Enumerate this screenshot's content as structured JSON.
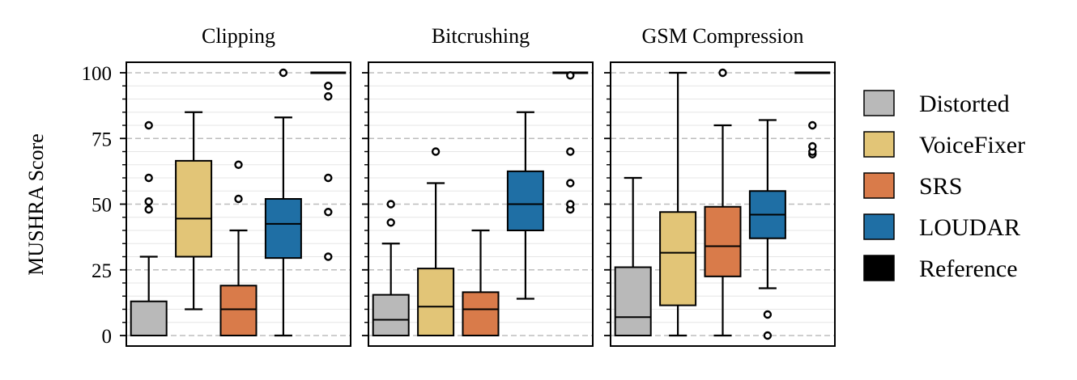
{
  "chart_data": {
    "type": "box",
    "ylabel": "MUSHRA Score",
    "ylim": [
      -4,
      104
    ],
    "yticks": [
      0,
      25,
      50,
      75,
      100
    ],
    "grid": "horizontal (major dashed, minor solid)",
    "legend_placement": "right",
    "legend": [
      {
        "name": "Distorted",
        "color": "#b9b9b9"
      },
      {
        "name": "VoiceFixer",
        "color": "#e2c577"
      },
      {
        "name": "SRS",
        "color": "#d97b4a"
      },
      {
        "name": "LOUDAR",
        "color": "#1f6fa5"
      },
      {
        "name": "Reference",
        "color": "#000000"
      }
    ],
    "panels": [
      {
        "title": "Clipping",
        "boxes": [
          {
            "series": "Distorted",
            "q1": 0,
            "median": 0,
            "q3": 13,
            "whisker_low": 0,
            "whisker_high": 30,
            "outliers": [
              48,
              51,
              60,
              80
            ]
          },
          {
            "series": "VoiceFixer",
            "q1": 30,
            "median": 44.5,
            "q3": 66.5,
            "whisker_low": 10,
            "whisker_high": 85,
            "outliers": []
          },
          {
            "series": "SRS",
            "q1": 0,
            "median": 10,
            "q3": 19,
            "whisker_low": 0,
            "whisker_high": 40,
            "outliers": [
              52,
              65
            ]
          },
          {
            "series": "LOUDAR",
            "q1": 29.5,
            "median": 42.5,
            "q3": 52,
            "whisker_low": 0,
            "whisker_high": 83,
            "outliers": [
              100
            ]
          },
          {
            "series": "Reference",
            "q1": 100,
            "median": 100,
            "q3": 100,
            "whisker_low": 100,
            "whisker_high": 100,
            "outliers": [
              30,
              47,
              60,
              91,
              95
            ]
          }
        ]
      },
      {
        "title": "Bitcrushing",
        "boxes": [
          {
            "series": "Distorted",
            "q1": 0,
            "median": 6,
            "q3": 15.5,
            "whisker_low": 0,
            "whisker_high": 35,
            "outliers": [
              43,
              50
            ]
          },
          {
            "series": "VoiceFixer",
            "q1": 0,
            "median": 11,
            "q3": 25.5,
            "whisker_low": 0,
            "whisker_high": 58,
            "outliers": [
              70
            ]
          },
          {
            "series": "SRS",
            "q1": 0,
            "median": 10,
            "q3": 16.5,
            "whisker_low": 0,
            "whisker_high": 40,
            "outliers": []
          },
          {
            "series": "LOUDAR",
            "q1": 40,
            "median": 50,
            "q3": 62.5,
            "whisker_low": 14,
            "whisker_high": 85,
            "outliers": []
          },
          {
            "series": "Reference",
            "q1": 100,
            "median": 100,
            "q3": 100,
            "whisker_low": 100,
            "whisker_high": 100,
            "outliers": [
              48,
              50,
              58,
              70,
              99
            ]
          }
        ]
      },
      {
        "title": "GSM Compression",
        "boxes": [
          {
            "series": "Distorted",
            "q1": 0,
            "median": 7,
            "q3": 26,
            "whisker_low": 0,
            "whisker_high": 60,
            "outliers": []
          },
          {
            "series": "VoiceFixer",
            "q1": 11.5,
            "median": 31.5,
            "q3": 47,
            "whisker_low": 0,
            "whisker_high": 100,
            "outliers": []
          },
          {
            "series": "SRS",
            "q1": 22.5,
            "median": 34,
            "q3": 49,
            "whisker_low": 0,
            "whisker_high": 80,
            "outliers": [
              100
            ]
          },
          {
            "series": "LOUDAR",
            "q1": 37,
            "median": 46,
            "q3": 55,
            "whisker_low": 18,
            "whisker_high": 82,
            "outliers": [
              0,
              8
            ]
          },
          {
            "series": "Reference",
            "q1": 100,
            "median": 100,
            "q3": 100,
            "whisker_low": 100,
            "whisker_high": 100,
            "outliers": [
              69,
              70,
              72,
              80
            ]
          }
        ]
      }
    ]
  }
}
